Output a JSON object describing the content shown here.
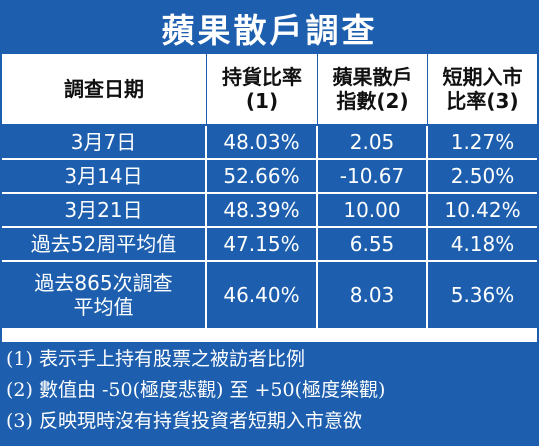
{
  "title": "蘋果散戶調查",
  "headers": [
    "調查日期",
    "持貨比率\n(1)",
    "蘋果散戶\n指數(2)",
    "短期入市\n比率(3)"
  ],
  "rows": [
    [
      "3月7日",
      "48.03%",
      "2.05",
      "1.27%"
    ],
    [
      "3月14日",
      "52.66%",
      "-10.67",
      "2.50%"
    ],
    [
      "3月21日",
      "48.39%",
      "10.00",
      "10.42%"
    ],
    [
      "過去52周平均值",
      "47.15%",
      "6.55",
      "4.18%"
    ],
    [
      "過去865次調查\n平均值",
      "46.40%",
      "8.03",
      "5.36%"
    ]
  ],
  "notes": [
    "(1) 表示手上持有股票之被訪者比例",
    "(2) 數值由 -50(極度悲觀) 至 +50(極度樂觀)",
    "(3) 反映現時沒有持貨投資者短期入市意欲"
  ],
  "colors": {
    "accent": "#1d5fae",
    "text_on_accent": "#ffffff"
  }
}
